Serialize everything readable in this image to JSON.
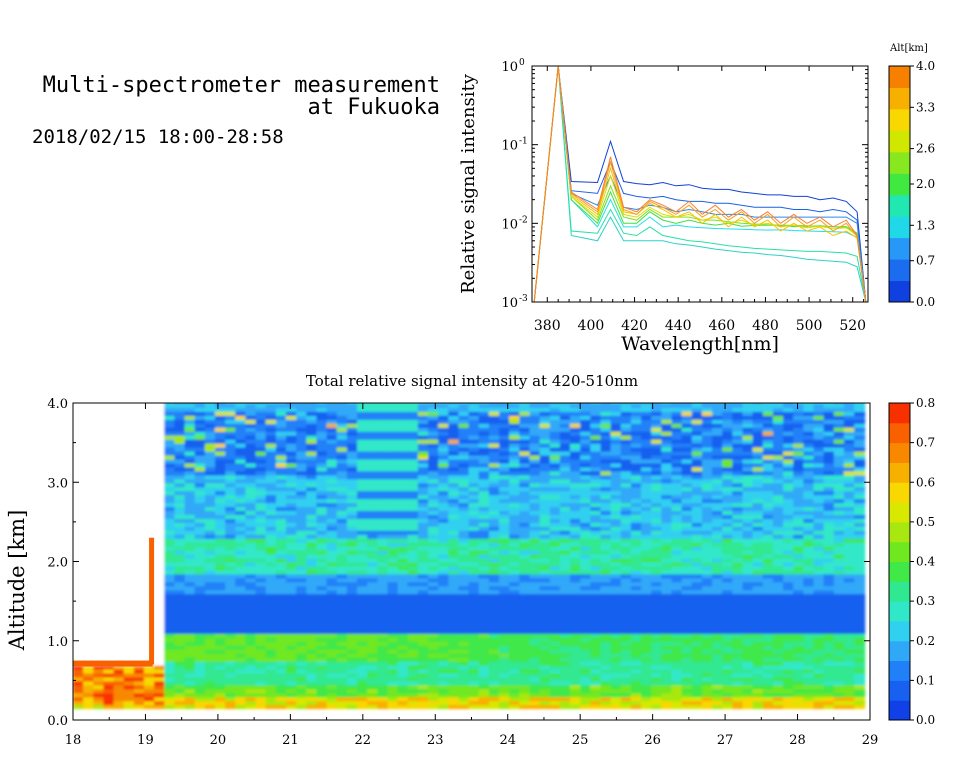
{
  "header": {
    "title_line1": "Multi-spectrometer measurement",
    "title_line2": "at Fukuoka",
    "date_range": "2018/02/15 18:00-28:58"
  },
  "chart_data": [
    {
      "type": "line",
      "xlabel": "Wavelength[nm]",
      "ylabel": "Relative signal intensity",
      "xlim": [
        373,
        527
      ],
      "ylim": [
        0.001,
        1
      ],
      "yscale": "log",
      "x_ticks": [
        "380",
        "400",
        "420",
        "440",
        "460",
        "480",
        "500",
        "520"
      ],
      "y_ticks": [
        "10^-3",
        "10^-2",
        "10^-1",
        "10^0"
      ],
      "x": [
        374,
        385,
        391,
        403,
        409,
        415,
        421,
        427,
        433,
        439,
        445,
        451,
        457,
        463,
        469,
        475,
        481,
        487,
        493,
        499,
        505,
        511,
        517,
        522,
        526
      ],
      "series_color_by": "altitude",
      "series": [
        {
          "altitude": 0.0,
          "values": [
            0.001,
            1.0,
            0.034,
            0.033,
            0.11,
            0.034,
            0.032,
            0.031,
            0.033,
            0.03,
            0.031,
            0.028,
            0.027,
            0.027,
            0.025,
            0.024,
            0.023,
            0.023,
            0.022,
            0.022,
            0.02,
            0.021,
            0.019,
            0.014,
            0.001
          ],
          "color": "#1040d8"
        },
        {
          "altitude": 0.35,
          "values": [
            0.001,
            1.0,
            0.026,
            0.024,
            0.06,
            0.024,
            0.022,
            0.021,
            0.022,
            0.02,
            0.019,
            0.019,
            0.018,
            0.018,
            0.017,
            0.016,
            0.016,
            0.016,
            0.015,
            0.015,
            0.014,
            0.015,
            0.014,
            0.011,
            0.001
          ],
          "color": "#1c60e8"
        },
        {
          "altitude": 0.7,
          "values": [
            0.001,
            1.0,
            0.024,
            0.017,
            0.04,
            0.016,
            0.015,
            0.017,
            0.016,
            0.014,
            0.015,
            0.014,
            0.013,
            0.013,
            0.013,
            0.012,
            0.012,
            0.012,
            0.012,
            0.012,
            0.012,
            0.012,
            0.012,
            0.01,
            0.001
          ],
          "color": "#2a88f0"
        },
        {
          "altitude": 1.3,
          "values": [
            0.001,
            1.0,
            0.007,
            0.006,
            0.012,
            0.006,
            0.006,
            0.006,
            0.006,
            0.0055,
            0.0053,
            0.005,
            0.0047,
            0.0045,
            0.0043,
            0.0042,
            0.004,
            0.0039,
            0.0037,
            0.0035,
            0.0034,
            0.0033,
            0.0032,
            0.0028,
            0.001
          ],
          "color": "#30d0c8"
        },
        {
          "altitude": 1.5,
          "values": [
            0.001,
            1.0,
            0.008,
            0.0075,
            0.015,
            0.0075,
            0.007,
            0.009,
            0.007,
            0.0065,
            0.006,
            0.0058,
            0.0055,
            0.0052,
            0.005,
            0.0048,
            0.0047,
            0.0046,
            0.0045,
            0.0044,
            0.0044,
            0.0043,
            0.0042,
            0.0038,
            0.001
          ],
          "color": "#28e0a8"
        },
        {
          "altitude": 1.6,
          "values": [
            0.001,
            1.0,
            0.02,
            0.009,
            0.02,
            0.009,
            0.009,
            0.012,
            0.009,
            0.0095,
            0.009,
            0.0088,
            0.0086,
            0.0085,
            0.0084,
            0.0083,
            0.0082,
            0.0083,
            0.0081,
            0.008,
            0.0079,
            0.0078,
            0.0077,
            0.0066,
            0.001
          ],
          "color": "#20e0e8"
        },
        {
          "altitude": 2.0,
          "values": [
            0.001,
            1.0,
            0.02,
            0.01,
            0.025,
            0.01,
            0.01,
            0.014,
            0.011,
            0.01,
            0.011,
            0.01,
            0.0095,
            0.01,
            0.0092,
            0.0094,
            0.0095,
            0.0094,
            0.0091,
            0.0092,
            0.0093,
            0.009,
            0.0091,
            0.0075,
            0.001
          ],
          "color": "#40e040"
        },
        {
          "altitude": 2.3,
          "values": [
            0.001,
            1.0,
            0.022,
            0.011,
            0.03,
            0.012,
            0.011,
            0.015,
            0.012,
            0.012,
            0.012,
            0.011,
            0.011,
            0.0105,
            0.01,
            0.0098,
            0.0096,
            0.0095,
            0.0094,
            0.0093,
            0.0092,
            0.009,
            0.0088,
            0.0072,
            0.001
          ],
          "color": "#80e020"
        },
        {
          "altitude": 2.8,
          "values": [
            0.001,
            1.0,
            0.022,
            0.012,
            0.04,
            0.013,
            0.012,
            0.016,
            0.013,
            0.012,
            0.013,
            0.011,
            0.012,
            0.01,
            0.011,
            0.0095,
            0.01,
            0.009,
            0.0095,
            0.0088,
            0.0092,
            0.0085,
            0.0088,
            0.007,
            0.001
          ],
          "color": "#d8e000"
        },
        {
          "altitude": 3.1,
          "values": [
            0.001,
            1.0,
            0.023,
            0.013,
            0.05,
            0.014,
            0.013,
            0.018,
            0.015,
            0.012,
            0.014,
            0.01,
            0.013,
            0.009,
            0.012,
            0.009,
            0.011,
            0.008,
            0.01,
            0.008,
            0.009,
            0.007,
            0.008,
            0.0065,
            0.001
          ],
          "color": "#f8c000"
        },
        {
          "altitude": 3.6,
          "values": [
            0.001,
            1.0,
            0.024,
            0.014,
            0.06,
            0.015,
            0.013,
            0.019,
            0.016,
            0.013,
            0.017,
            0.012,
            0.015,
            0.011,
            0.014,
            0.01,
            0.013,
            0.009,
            0.012,
            0.009,
            0.011,
            0.008,
            0.01,
            0.0068,
            0.001
          ],
          "color": "#f8a020"
        },
        {
          "altitude": 4.0,
          "values": [
            0.001,
            1.0,
            0.025,
            0.015,
            0.07,
            0.016,
            0.014,
            0.02,
            0.017,
            0.014,
            0.019,
            0.013,
            0.017,
            0.012,
            0.015,
            0.011,
            0.014,
            0.01,
            0.013,
            0.01,
            0.012,
            0.009,
            0.011,
            0.007,
            0.001
          ],
          "color": "#f88030"
        }
      ],
      "colorbar": {
        "title": "Alt[km]",
        "tick_labels": [
          "0.0",
          "0.7",
          "1.3",
          "2.0",
          "2.6",
          "3.3",
          "4.0"
        ],
        "range": [
          0,
          4
        ],
        "colors": [
          "#1040e0",
          "#1c6cf0",
          "#2898f8",
          "#20d8e8",
          "#20e8b0",
          "#40e840",
          "#88e820",
          "#d0e800",
          "#f8d800",
          "#f8b000",
          "#f88000"
        ]
      }
    },
    {
      "type": "heatmap",
      "title": "Total relative signal intensity at 420-510nm",
      "ylabel": "Altitude [km]",
      "xlim": [
        18,
        29
      ],
      "ylim": [
        0,
        4
      ],
      "x_ticks": [
        "18",
        "19",
        "20",
        "21",
        "22",
        "23",
        "24",
        "25",
        "26",
        "27",
        "28",
        "29"
      ],
      "y_ticks": [
        "0.0",
        "1.0",
        "2.0",
        "3.0",
        "4.0"
      ],
      "data_x_range": [
        18,
        28.85
      ],
      "data_y_range": [
        0.15,
        4.0
      ],
      "colorbar": {
        "tick_labels": [
          "0.0",
          "0.1",
          "0.2",
          "0.3",
          "0.4",
          "0.5",
          "0.6",
          "0.7",
          "0.8"
        ],
        "range": [
          0,
          0.8
        ],
        "colors": [
          "#1040e8",
          "#1860f0",
          "#2080f8",
          "#30a8f8",
          "#30d0f0",
          "#30e8c8",
          "#30e890",
          "#40e848",
          "#70e820",
          "#a8e810",
          "#d8e800",
          "#f8d800",
          "#f8b000",
          "#f88800",
          "#f86000",
          "#f83000"
        ]
      },
      "layers": [
        {
          "alt_range": [
            0.15,
            0.3
          ],
          "value": 0.45
        },
        {
          "alt_range": [
            0.3,
            0.45
          ],
          "value": 0.38
        },
        {
          "alt_range": [
            0.45,
            0.75
          ],
          "value": 0.32
        },
        {
          "alt_range": [
            0.75,
            1.1
          ],
          "value": 0.37
        },
        {
          "alt_range": [
            1.1,
            1.55
          ],
          "value": 0.06
        },
        {
          "alt_range": [
            1.55,
            1.85
          ],
          "value": 0.15
        },
        {
          "alt_range": [
            1.85,
            2.3
          ],
          "value": 0.3
        },
        {
          "alt_range": [
            2.3,
            3.1
          ],
          "value": 0.2
        },
        {
          "alt_range": [
            3.1,
            3.9
          ],
          "value": 0.12
        },
        {
          "alt_range": [
            3.9,
            4.0
          ],
          "value": 0.18
        }
      ]
    }
  ]
}
